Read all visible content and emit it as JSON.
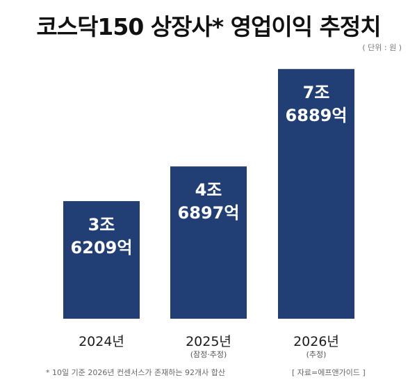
{
  "chart_data": {
    "type": "bar",
    "title": "코스닥150 상장사* 영업이익 추정치",
    "unit_note": "( 단위 : 원 )",
    "categories": [
      "2024년",
      "2025년",
      "2026년"
    ],
    "category_notes": [
      "",
      "(잠정·추정)",
      "(추정)"
    ],
    "values": [
      36209,
      46897,
      76889
    ],
    "value_unit": "억원",
    "data_labels": [
      [
        "3조",
        "6209억"
      ],
      [
        "4조",
        "6897억"
      ],
      [
        "7조",
        "6889억"
      ]
    ],
    "bar_color": "#213f75",
    "ylim": [
      0,
      78000
    ],
    "grid": false
  },
  "footnote": "*  10일 기준 2026년 컨센서스가 존재하는 92개사 합산",
  "source": "[ 자료=에프앤가이드 ]"
}
